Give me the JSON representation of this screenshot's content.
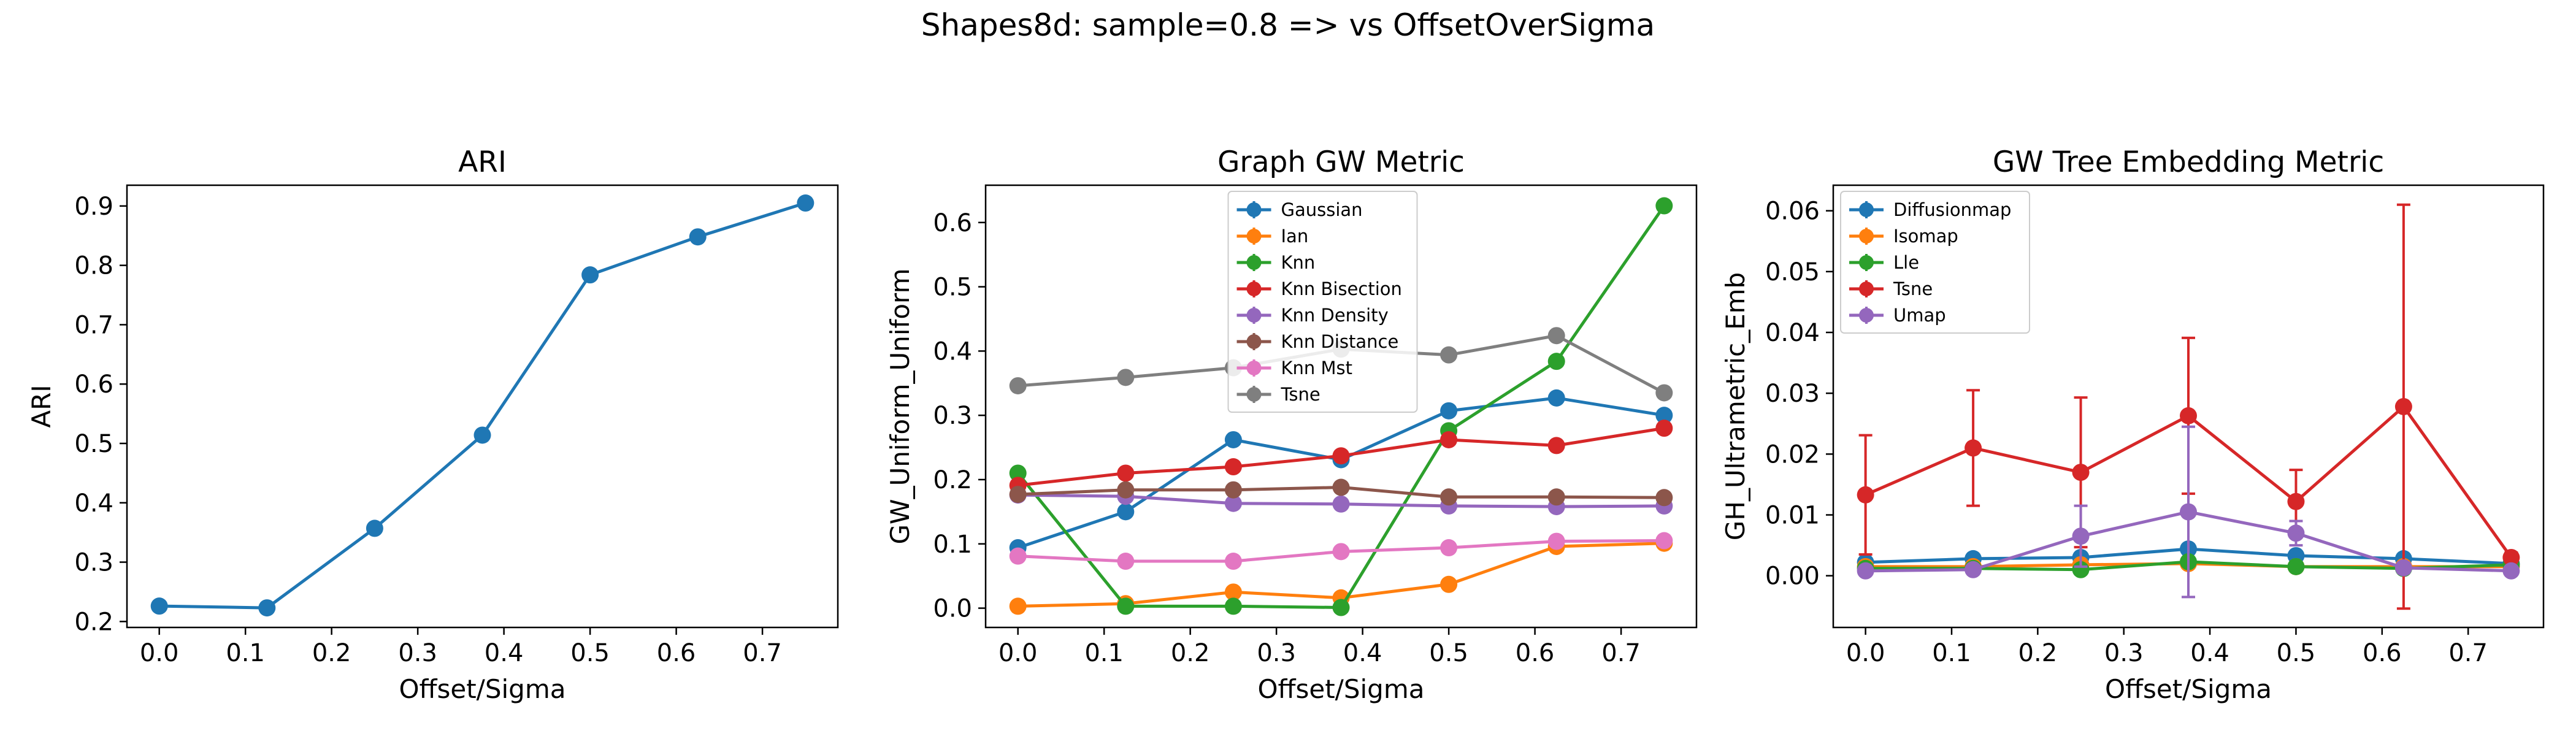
{
  "suptitle": "Shapes8d: sample=0.8 => vs OffsetOverSigma",
  "chart_data": [
    {
      "type": "line",
      "title": "ARI",
      "xlabel": "Offset/Sigma",
      "ylabel": "ARI",
      "x": [
        0.0,
        0.125,
        0.25,
        0.375,
        0.5,
        0.625,
        0.75
      ],
      "xlim": [
        -0.0375,
        0.7875
      ],
      "ylim": [
        0.19,
        0.935
      ],
      "xticks": [
        0.0,
        0.1,
        0.2,
        0.3,
        0.4,
        0.5,
        0.6,
        0.7
      ],
      "yticks": [
        0.2,
        0.3,
        0.4,
        0.5,
        0.6,
        0.7,
        0.8,
        0.9
      ],
      "tick_decimals": 1,
      "legend": null,
      "series": [
        {
          "color": "#1f77b4",
          "values": [
            0.226,
            0.223,
            0.357,
            0.514,
            0.784,
            0.848,
            0.905
          ]
        }
      ]
    },
    {
      "type": "line",
      "title": "Graph GW Metric",
      "xlabel": "Offset/Sigma",
      "ylabel": "GW_Uniform_Uniform",
      "x": [
        0.0,
        0.125,
        0.25,
        0.375,
        0.5,
        0.625,
        0.75
      ],
      "xlim": [
        -0.0375,
        0.7875
      ],
      "ylim": [
        -0.03,
        0.658
      ],
      "xticks": [
        0.0,
        0.1,
        0.2,
        0.3,
        0.4,
        0.5,
        0.6,
        0.7
      ],
      "yticks": [
        0.0,
        0.1,
        0.2,
        0.3,
        0.4,
        0.5,
        0.6
      ],
      "tick_decimals": 1,
      "legend": "upper center",
      "series": [
        {
          "name": "Gaussian",
          "color": "#1f77b4",
          "values": [
            0.094,
            0.15,
            0.262,
            0.231,
            0.307,
            0.327,
            0.3
          ]
        },
        {
          "name": "Ian",
          "color": "#ff7f0e",
          "values": [
            0.003,
            0.007,
            0.025,
            0.016,
            0.037,
            0.096,
            0.101
          ]
        },
        {
          "name": "Knn",
          "color": "#2ca02c",
          "values": [
            0.21,
            0.003,
            0.003,
            0.001,
            0.276,
            0.384,
            0.626
          ]
        },
        {
          "name": "Knn Bisection",
          "color": "#d62728",
          "values": [
            0.191,
            0.21,
            0.22,
            0.237,
            0.262,
            0.253,
            0.28
          ]
        },
        {
          "name": "Knn Density",
          "color": "#9467bd",
          "values": [
            0.176,
            0.174,
            0.163,
            0.162,
            0.159,
            0.158,
            0.159
          ]
        },
        {
          "name": "Knn Distance",
          "color": "#8c564b",
          "values": [
            0.177,
            0.184,
            0.184,
            0.188,
            0.173,
            0.173,
            0.172
          ]
        },
        {
          "name": "Knn Mst",
          "color": "#e377c2",
          "values": [
            0.081,
            0.073,
            0.073,
            0.088,
            0.094,
            0.104,
            0.105
          ]
        },
        {
          "name": "Tsne",
          "color": "#7f7f7f",
          "values": [
            0.346,
            0.359,
            0.374,
            0.403,
            0.394,
            0.424,
            0.335
          ]
        }
      ]
    },
    {
      "type": "line",
      "title": "GW Tree Embedding Metric",
      "xlabel": "Offset/Sigma",
      "ylabel": "GH_Ultrametric_Emb",
      "x": [
        0.0,
        0.125,
        0.25,
        0.375,
        0.5,
        0.625,
        0.75
      ],
      "xlim": [
        -0.0375,
        0.7875
      ],
      "ylim": [
        -0.0085,
        0.0642
      ],
      "xticks": [
        0.0,
        0.1,
        0.2,
        0.3,
        0.4,
        0.5,
        0.6,
        0.7
      ],
      "yticks": [
        0.0,
        0.01,
        0.02,
        0.03,
        0.04,
        0.05,
        0.06
      ],
      "tick_decimals": 2,
      "legend": "upper left",
      "series": [
        {
          "name": "Diffusionmap",
          "color": "#1f77b4",
          "values": [
            0.0022,
            0.0028,
            0.003,
            0.0044,
            0.0033,
            0.0028,
            0.002
          ]
        },
        {
          "name": "Isomap",
          "color": "#ff7f0e",
          "values": [
            0.0015,
            0.0015,
            0.0018,
            0.002,
            0.0015,
            0.0015,
            0.0015
          ]
        },
        {
          "name": "Lle",
          "color": "#2ca02c",
          "values": [
            0.0012,
            0.0012,
            0.001,
            0.0023,
            0.0015,
            0.0012,
            0.0018
          ]
        },
        {
          "name": "Tsne",
          "color": "#d62728",
          "values": [
            0.0133,
            0.021,
            0.017,
            0.0263,
            0.0122,
            0.0278,
            0.003
          ],
          "error": [
            0.0098,
            0.0095,
            0.0123,
            0.0128,
            0.0052,
            0.0332,
            0.0008
          ]
        },
        {
          "name": "Umap",
          "color": "#9467bd",
          "values": [
            0.0008,
            0.001,
            0.0065,
            0.0105,
            0.007,
            0.0013,
            0.0008
          ],
          "error": [
            0.0004,
            0.0004,
            0.005,
            0.014,
            0.002,
            0.0008,
            0.0004
          ]
        }
      ]
    }
  ]
}
